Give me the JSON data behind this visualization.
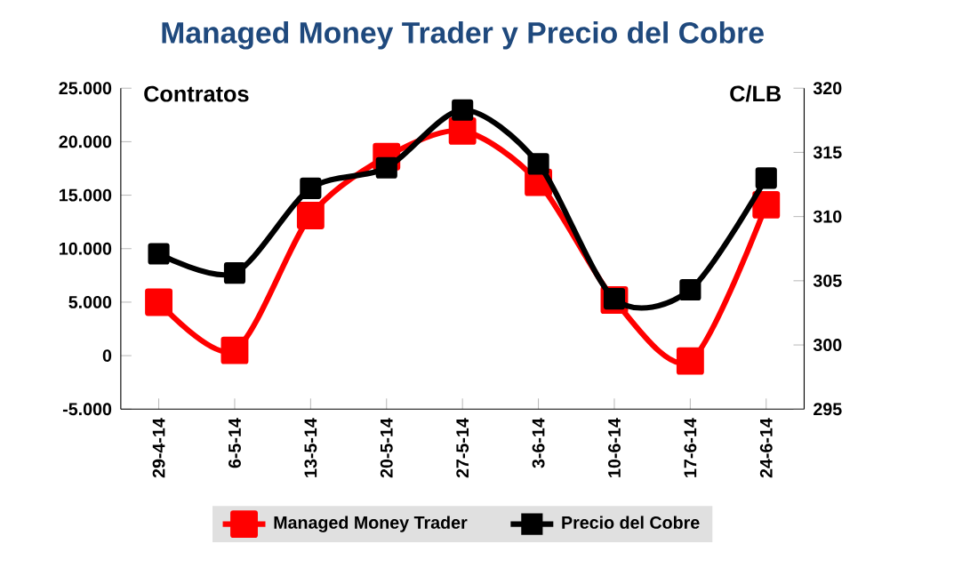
{
  "chart_data": {
    "type": "line",
    "title": "Managed Money Trader y Precio del Cobre",
    "ylabel": "Contratos",
    "y2label": "C/LB",
    "categories": [
      "29-4-14",
      "6-5-14",
      "13-5-14",
      "20-5-14",
      "27-5-14",
      "3-6-14",
      "10-6-14",
      "17-6-14",
      "24-6-14"
    ],
    "series": [
      {
        "name": "Managed Money Trader",
        "color": "#ff0000",
        "values": [
          5000,
          500,
          13100,
          18600,
          21000,
          16200,
          5200,
          -500,
          14100
        ]
      },
      {
        "name": "Precio del Cobre",
        "color": "#000000",
        "axis": "y2",
        "values": [
          307.1,
          305.6,
          312.2,
          313.8,
          318.3,
          314.1,
          303.6,
          304.3,
          313.0
        ]
      }
    ],
    "ylim": [
      -5000,
      25000
    ],
    "yticks": [
      {
        "value": -5000,
        "label": "-5.000"
      },
      0,
      {
        "value": 5000,
        "label": "5.000"
      },
      {
        "value": 10000,
        "label": "10.000"
      },
      {
        "value": 15000,
        "label": "15.000"
      },
      {
        "value": 20000,
        "label": "20.000"
      },
      {
        "value": 25000,
        "label": "25.000"
      }
    ],
    "y2lim": [
      295,
      320
    ],
    "y2ticks": [
      295,
      300,
      305,
      310,
      315,
      320
    ],
    "marker": "square",
    "legend": "bottom",
    "grid": false
  }
}
